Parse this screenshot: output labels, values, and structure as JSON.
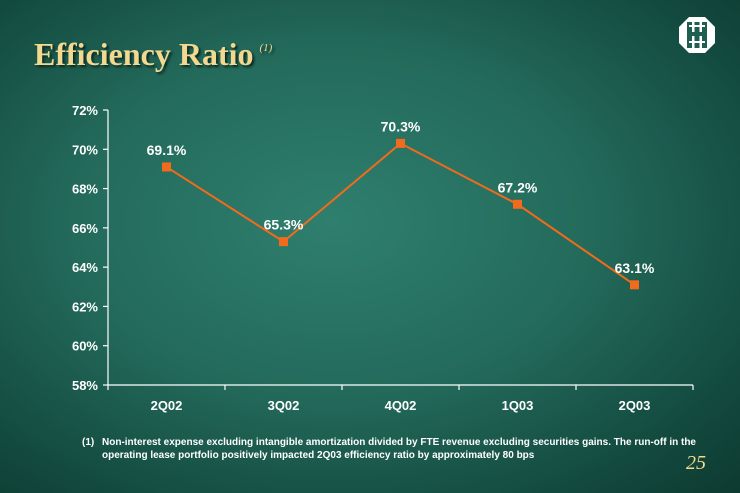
{
  "slide": {
    "title": "Efficiency Ratio",
    "title_note": "(1)",
    "footnote_marker": "(1)",
    "footnote_text": "Non-interest expense excluding intangible amortization divided by FTE revenue excluding securities gains. The run-off in the operating lease portfolio positively impacted 2Q03 efficiency ratio by approximately 80 bps",
    "page_number": "25"
  },
  "colors": {
    "series": "#f26a1b",
    "title": "#f3d890",
    "axis_text": "#ffffff"
  },
  "chart_data": {
    "type": "line",
    "categories": [
      "2Q02",
      "3Q02",
      "4Q02",
      "1Q03",
      "2Q03"
    ],
    "series": [
      {
        "values": [
          69.1,
          65.3,
          70.3,
          67.2,
          63.1
        ],
        "labels": [
          "69.1%",
          "65.3%",
          "70.3%",
          "67.2%",
          "63.1%"
        ]
      }
    ],
    "y_ticks": [
      "58%",
      "60%",
      "62%",
      "64%",
      "66%",
      "68%",
      "70%",
      "72%"
    ],
    "ylim": [
      58,
      72
    ],
    "grid": false,
    "legend": "none",
    "marker": "square"
  }
}
